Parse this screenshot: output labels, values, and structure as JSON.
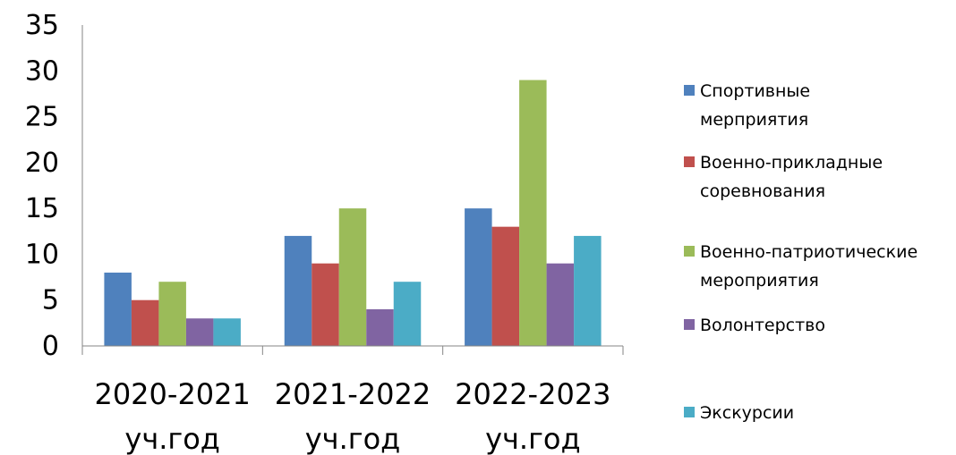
{
  "chart_data": {
    "type": "bar",
    "title": "",
    "xlabel": "",
    "ylabel": "",
    "ylim": [
      0,
      35
    ],
    "yticks": [
      0,
      5,
      10,
      15,
      20,
      25,
      30,
      35
    ],
    "grid": false,
    "legend_position": "right",
    "categories": [
      [
        "2020-2021",
        "уч.год"
      ],
      [
        "2021-2022",
        "уч.год"
      ],
      [
        "2022-2023",
        "уч.год"
      ]
    ],
    "series": [
      {
        "name": [
          "Спортивные",
          "мерприятия"
        ],
        "color": "#4F81BD",
        "values": [
          8,
          12,
          15
        ]
      },
      {
        "name": [
          "Военно-прикладные",
          "соревнования"
        ],
        "color": "#C0504D",
        "values": [
          5,
          9,
          13
        ]
      },
      {
        "name": [
          "Военно-патриотические",
          "мероприятия"
        ],
        "color": "#9BBB59",
        "values": [
          7,
          15,
          29
        ]
      },
      {
        "name": [
          "Волонтерство"
        ],
        "color": "#8064A2",
        "values": [
          3,
          4,
          9
        ]
      },
      {
        "name": [
          "Экскурсии"
        ],
        "color": "#4BACC6",
        "values": [
          3,
          7,
          12
        ]
      }
    ]
  }
}
